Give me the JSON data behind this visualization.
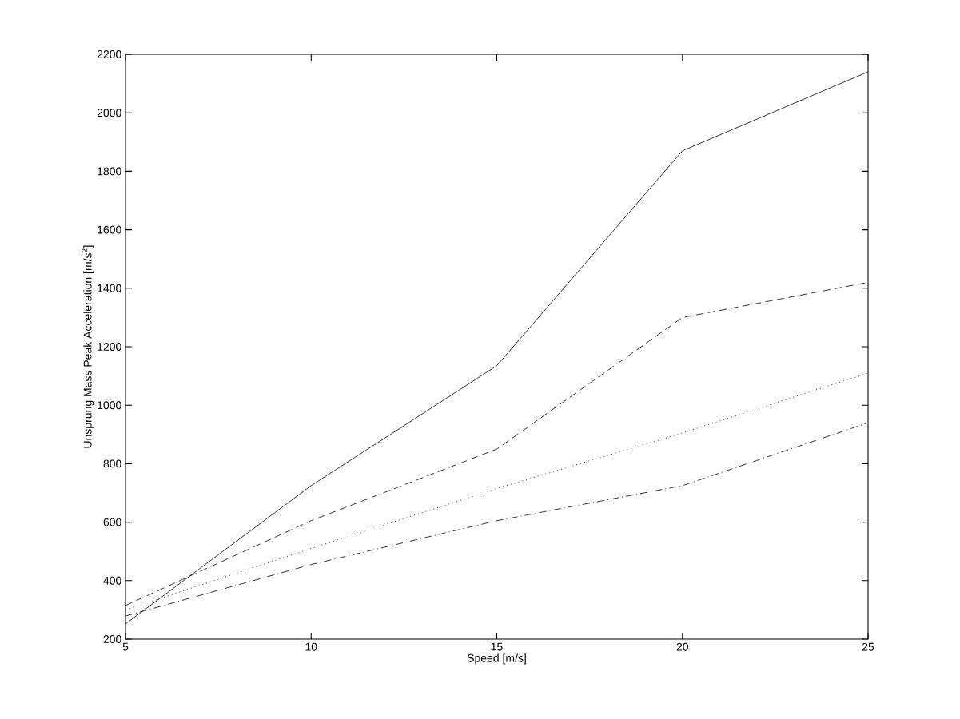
{
  "chart_data": {
    "type": "line",
    "xlabel": "Speed [m/s]",
    "ylabel": "Unsprung Mass Peak Acceleration [m/s$^{2}$]",
    "x": [
      5,
      10,
      15,
      20,
      25
    ],
    "series": [
      {
        "color": "#000000",
        "line_style": "solid",
        "values": [
          252,
          725,
          1135,
          1870,
          2140
        ]
      },
      {
        "color": "#000000",
        "line_style": "dashed",
        "values": [
          315,
          605,
          850,
          1300,
          1420
        ]
      },
      {
        "color": "#000000",
        "line_style": "dotted",
        "values": [
          300,
          510,
          715,
          905,
          1110
        ]
      },
      {
        "color": "#000000",
        "line_style": "dashdot",
        "values": [
          279,
          455,
          605,
          725,
          940
        ]
      }
    ],
    "xlim": [
      5,
      25
    ],
    "ylim": [
      200,
      2200
    ],
    "xticks": [
      5,
      10,
      15,
      20,
      25
    ],
    "yticks": [
      200,
      400,
      600,
      800,
      1000,
      1200,
      1400,
      1600,
      1800,
      2000,
      2200
    ],
    "grid": false,
    "marker": "none"
  }
}
